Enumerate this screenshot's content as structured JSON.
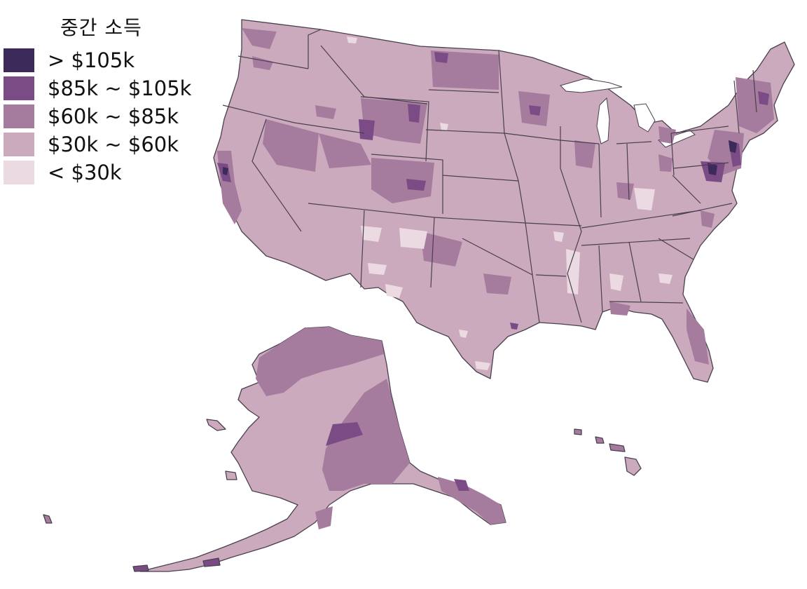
{
  "legend": {
    "title": "중간 소득",
    "items": [
      {
        "label": "> $105k",
        "color": "#3b2a5a"
      },
      {
        "label": "$85k ~ $105k",
        "color": "#7b4b85"
      },
      {
        "label": "$60k ~ $85k",
        "color": "#a57b9e"
      },
      {
        "label": "$30k ~ $60k",
        "color": "#ccaabd"
      },
      {
        "label": "< $30k",
        "color": "#ebdae1"
      }
    ]
  },
  "colors": {
    "stroke": "#4a3f4f",
    "background": "#ffffff"
  }
}
